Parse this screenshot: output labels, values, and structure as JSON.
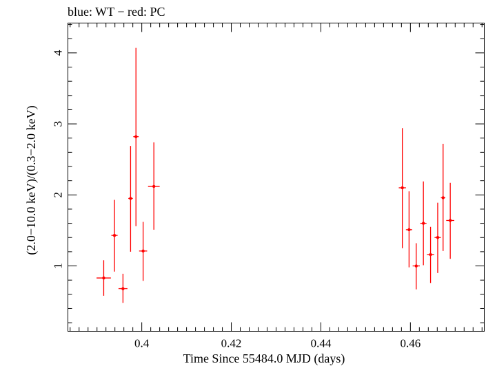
{
  "chart_data": {
    "type": "scatter",
    "title": "blue: WT − red: PC",
    "xlabel": "Time Since 55484.0 MJD (days)",
    "ylabel": "(2.0−10.0 keV)/(0.3−2.0 keV)",
    "xlim": [
      0.3835,
      0.4765
    ],
    "ylim": [
      0.08,
      4.42
    ],
    "xticks": [
      0.4,
      0.42,
      0.44,
      0.46
    ],
    "xtick_labels": [
      "0.4",
      "0.42",
      "0.44",
      "0.46"
    ],
    "yticks": [
      1,
      2,
      3,
      4
    ],
    "ytick_labels": [
      "1",
      "2",
      "3",
      "4"
    ],
    "grid": false,
    "series": [
      {
        "color": "#ff0000",
        "points": [
          {
            "x": 0.3915,
            "xerr": 0.0016,
            "y": 0.83,
            "ylo": 0.58,
            "yhi": 1.08
          },
          {
            "x": 0.3939,
            "xerr": 0.0007,
            "y": 1.43,
            "ylo": 0.92,
            "yhi": 1.93
          },
          {
            "x": 0.3958,
            "xerr": 0.001,
            "y": 0.68,
            "ylo": 0.48,
            "yhi": 0.89
          },
          {
            "x": 0.3975,
            "xerr": 0.0005,
            "y": 1.95,
            "ylo": 1.2,
            "yhi": 2.69
          },
          {
            "x": 0.3987,
            "xerr": 0.0006,
            "y": 2.82,
            "ylo": 1.56,
            "yhi": 4.07
          },
          {
            "x": 0.4003,
            "xerr": 0.0009,
            "y": 1.21,
            "ylo": 0.79,
            "yhi": 1.62
          },
          {
            "x": 0.4027,
            "xerr": 0.0013,
            "y": 2.12,
            "ylo": 1.51,
            "yhi": 2.74
          },
          {
            "x": 0.4582,
            "xerr": 0.0008,
            "y": 2.1,
            "ylo": 1.25,
            "yhi": 2.94
          },
          {
            "x": 0.4597,
            "xerr": 0.0007,
            "y": 1.51,
            "ylo": 0.98,
            "yhi": 2.05
          },
          {
            "x": 0.4613,
            "xerr": 0.0008,
            "y": 1.0,
            "ylo": 0.67,
            "yhi": 1.32
          },
          {
            "x": 0.4629,
            "xerr": 0.0007,
            "y": 1.6,
            "ylo": 1.01,
            "yhi": 2.19
          },
          {
            "x": 0.4645,
            "xerr": 0.0008,
            "y": 1.16,
            "ylo": 0.76,
            "yhi": 1.55
          },
          {
            "x": 0.4661,
            "xerr": 0.0007,
            "y": 1.4,
            "ylo": 0.9,
            "yhi": 1.89
          },
          {
            "x": 0.4673,
            "xerr": 0.0005,
            "y": 1.96,
            "ylo": 1.21,
            "yhi": 2.72
          },
          {
            "x": 0.4689,
            "xerr": 0.0009,
            "y": 1.64,
            "ylo": 1.1,
            "yhi": 2.17
          }
        ]
      }
    ]
  }
}
